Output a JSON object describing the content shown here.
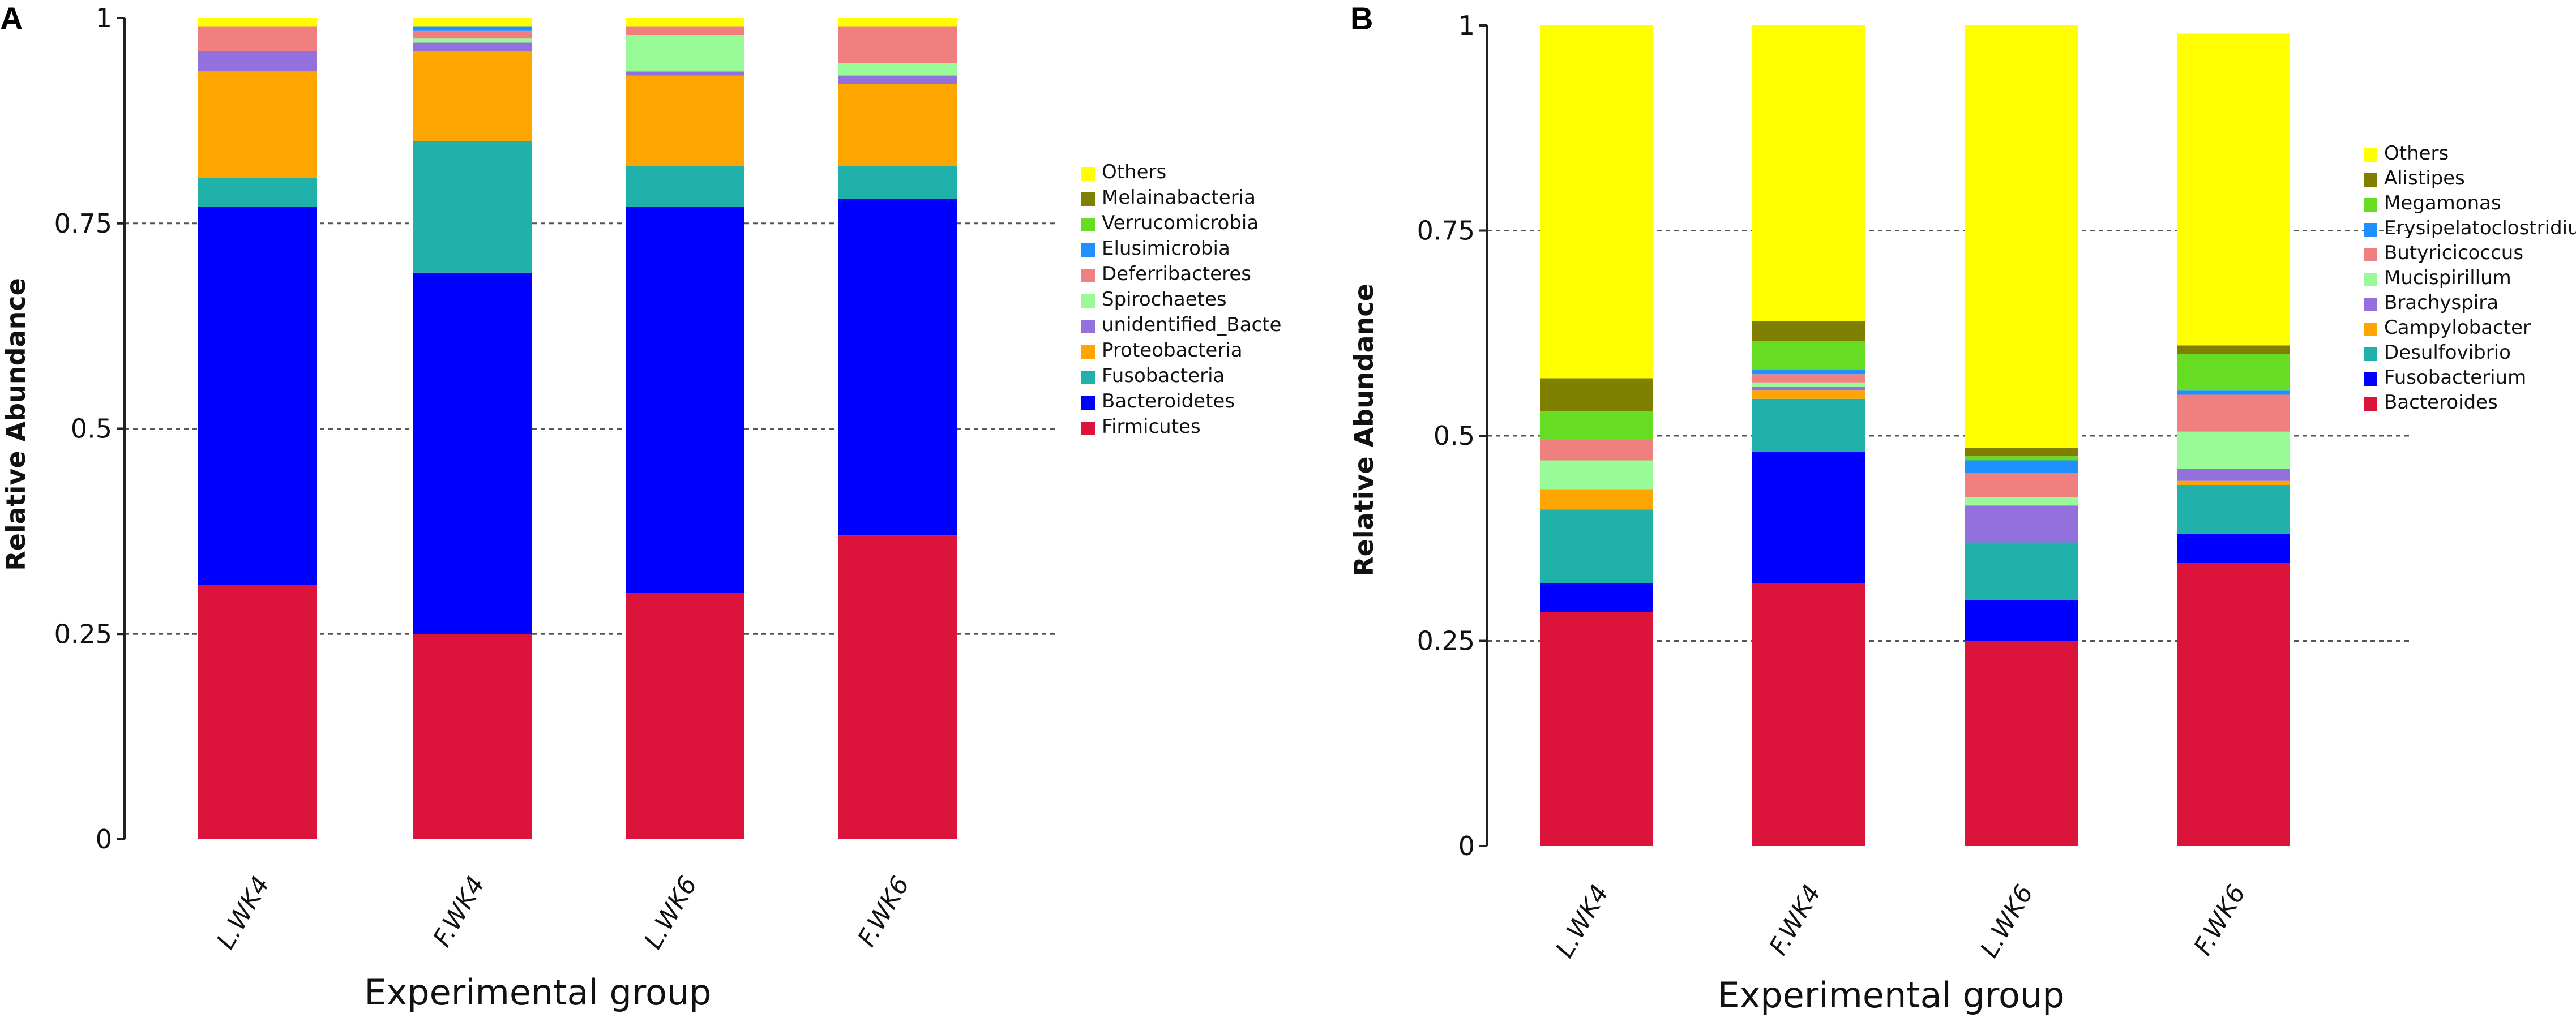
{
  "chart_data": [
    {
      "panel": "A",
      "type": "bar",
      "stacked": true,
      "title": "",
      "xlabel": "Experimental group",
      "ylabel": "Relative Abundance",
      "ylim": [
        0,
        1
      ],
      "yticks": [
        "0",
        "0.25",
        "0.5",
        "0.75",
        "1"
      ],
      "ytick_values": [
        0,
        0.25,
        0.5,
        0.75,
        1
      ],
      "grid": "dashed horizontal at 0.25, 0.5, 0.75",
      "categories": [
        "L.WK4",
        "F.WK4",
        "L.WK6",
        "F.WK6"
      ],
      "series": [
        {
          "name": "Firmicutes",
          "color": "#DC143C",
          "values": [
            0.31,
            0.25,
            0.3,
            0.37
          ]
        },
        {
          "name": "Bacteroidetes",
          "color": "#0000FF",
          "values": [
            0.46,
            0.44,
            0.47,
            0.41
          ]
        },
        {
          "name": "Fusobacteria",
          "color": "#20B2AA",
          "values": [
            0.035,
            0.16,
            0.05,
            0.04
          ]
        },
        {
          "name": "Proteobacteria",
          "color": "#FFA500",
          "values": [
            0.13,
            0.11,
            0.11,
            0.1
          ]
        },
        {
          "name": "unidentified_Bacte",
          "color": "#9370DB",
          "values": [
            0.025,
            0.01,
            0.005,
            0.01
          ]
        },
        {
          "name": "Spirochaetes",
          "color": "#98FB98",
          "values": [
            0.0,
            0.005,
            0.045,
            0.015
          ]
        },
        {
          "name": "Deferribacteres",
          "color": "#F08080",
          "values": [
            0.03,
            0.01,
            0.01,
            0.045
          ]
        },
        {
          "name": "Elusimicrobia",
          "color": "#1E90FF",
          "values": [
            0.0,
            0.005,
            0.0,
            0.0
          ]
        },
        {
          "name": "Verrucomicrobia",
          "color": "#66DD22",
          "values": [
            0.0,
            0.0,
            0.0,
            0.0
          ]
        },
        {
          "name": "Melainabacteria",
          "color": "#808000",
          "values": [
            0.0,
            0.0,
            0.0,
            0.0
          ]
        },
        {
          "name": "Others",
          "color": "#FFFF00",
          "values": [
            0.01,
            0.01,
            0.01,
            0.01
          ]
        }
      ],
      "legend_order": [
        "Others",
        "Melainabacteria",
        "Verrucomicrobia",
        "Elusimicrobia",
        "Deferribacteres",
        "Spirochaetes",
        "unidentified_Bacte",
        "Proteobacteria",
        "Fusobacteria",
        "Bacteroidetes",
        "Firmicutes"
      ],
      "legend_position": "right"
    },
    {
      "panel": "B",
      "type": "bar",
      "stacked": true,
      "title": "",
      "xlabel": "Experimental group",
      "ylabel": "Relative Abundance",
      "ylim": [
        0,
        1
      ],
      "yticks": [
        "0",
        "0.25",
        "0.5",
        "0.75",
        "1"
      ],
      "ytick_values": [
        0,
        0.25,
        0.5,
        0.75,
        1
      ],
      "grid": "dashed horizontal at 0.25, 0.5, 0.75",
      "categories": [
        "L.WK4",
        "F.WK4",
        "L.WK6",
        "F.WK6"
      ],
      "series": [
        {
          "name": "Bacteroides",
          "color": "#DC143C",
          "values": [
            0.285,
            0.32,
            0.25,
            0.345
          ]
        },
        {
          "name": "Fusobacterium",
          "color": "#0000FF",
          "values": [
            0.035,
            0.16,
            0.05,
            0.035
          ]
        },
        {
          "name": "Desulfovibrio",
          "color": "#20B2AA",
          "values": [
            0.09,
            0.065,
            0.07,
            0.06
          ]
        },
        {
          "name": "Campylobacter",
          "color": "#FFA500",
          "values": [
            0.025,
            0.01,
            0.0,
            0.005
          ]
        },
        {
          "name": "Brachyspira",
          "color": "#9370DB",
          "values": [
            0.0,
            0.005,
            0.045,
            0.015
          ]
        },
        {
          "name": "Mucispirillum",
          "color": "#98FB98",
          "values": [
            0.035,
            0.005,
            0.01,
            0.045
          ]
        },
        {
          "name": "Butyricicoccus",
          "color": "#F08080",
          "values": [
            0.025,
            0.01,
            0.03,
            0.045
          ]
        },
        {
          "name": "Erysipelatoclostridium",
          "color": "#1E90FF",
          "values": [
            0.0,
            0.005,
            0.015,
            0.005
          ]
        },
        {
          "name": "Megamonas",
          "color": "#66DD22",
          "values": [
            0.035,
            0.035,
            0.005,
            0.045
          ]
        },
        {
          "name": "Alistipes",
          "color": "#808000",
          "values": [
            0.04,
            0.025,
            0.01,
            0.01
          ]
        },
        {
          "name": "Others",
          "color": "#FFFF00",
          "values": [
            0.43,
            0.36,
            0.515,
            0.38
          ]
        }
      ],
      "legend_order": [
        "Others",
        "Alistipes",
        "Megamonas",
        "Erysipelatoclostridium",
        "Butyricicoccus",
        "Mucispirillum",
        "Brachyspira",
        "Campylobacter",
        "Desulfovibrio",
        "Fusobacterium",
        "Bacteroides"
      ],
      "legend_position": "right"
    }
  ],
  "panels": {
    "a": {
      "letter": "A"
    },
    "b": {
      "letter": "B"
    }
  }
}
